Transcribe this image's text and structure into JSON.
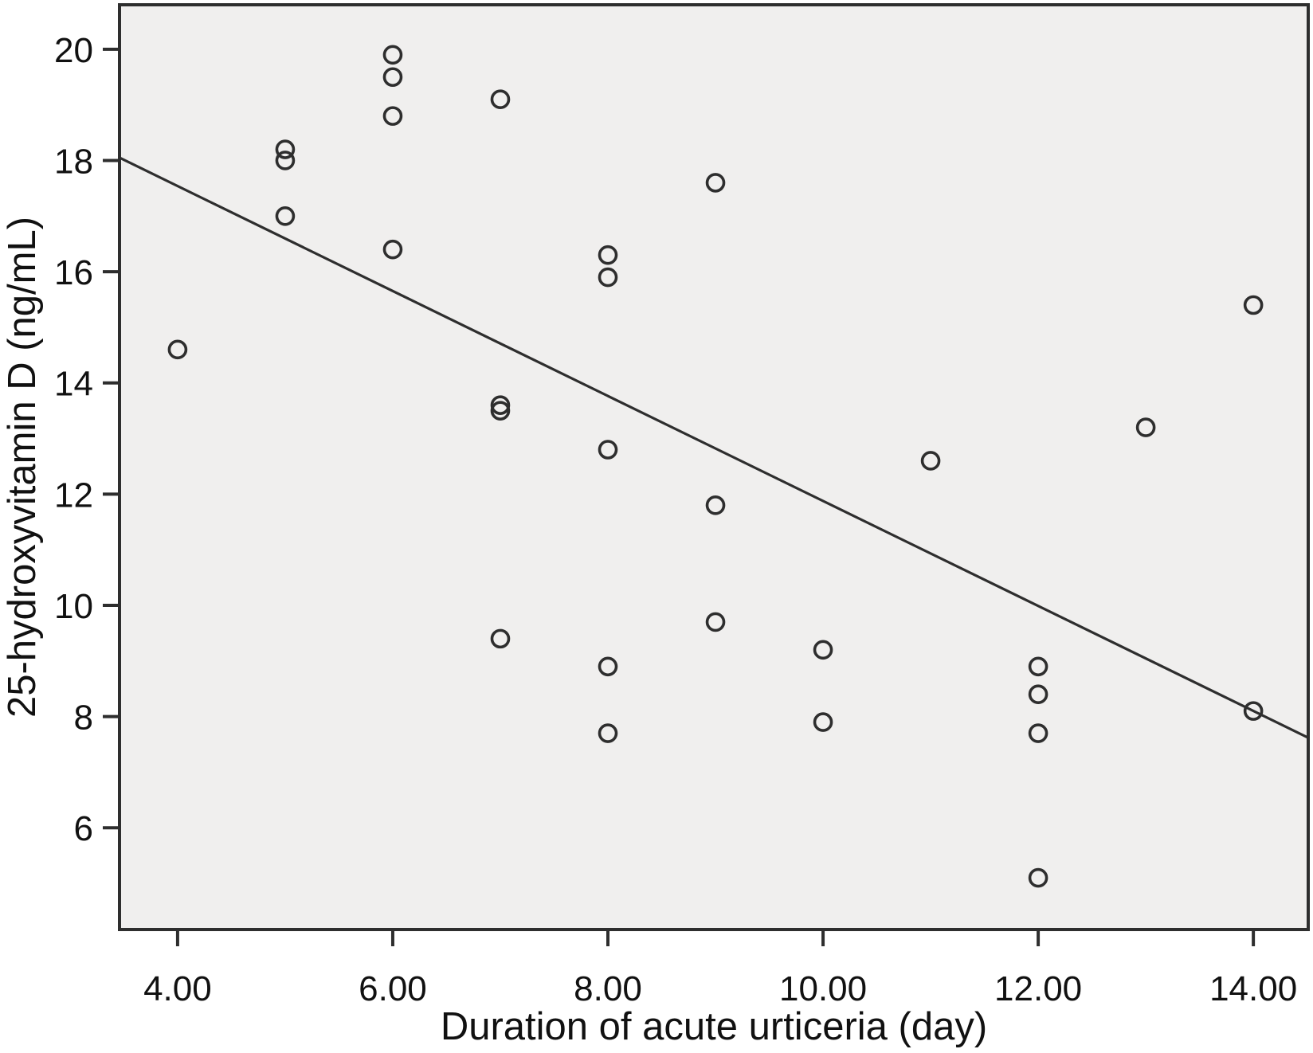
{
  "chart_data": {
    "type": "scatter",
    "title": "",
    "xlabel": "Duration of acute urticeria (day)",
    "ylabel": "25-hydroxyvitamin D (ng/mL)",
    "x_domain": [
      3.46,
      14.51
    ],
    "y_domain": [
      4.17,
      20.8
    ],
    "grid": false,
    "legend": null,
    "x_ticks": [
      {
        "value": 4,
        "label": "4.00"
      },
      {
        "value": 6,
        "label": "6.00"
      },
      {
        "value": 8,
        "label": "8.00"
      },
      {
        "value": 10,
        "label": "10.00"
      },
      {
        "value": 12,
        "label": "12.00"
      },
      {
        "value": 14,
        "label": "14.00"
      }
    ],
    "y_ticks": [
      {
        "value": 6,
        "label": "6"
      },
      {
        "value": 8,
        "label": "8"
      },
      {
        "value": 10,
        "label": "10"
      },
      {
        "value": 12,
        "label": "12"
      },
      {
        "value": 14,
        "label": "14"
      },
      {
        "value": 16,
        "label": "16"
      },
      {
        "value": 18,
        "label": "18"
      },
      {
        "value": 20,
        "label": "20"
      }
    ],
    "points": [
      {
        "x": 4,
        "y": 14.6
      },
      {
        "x": 5,
        "y": 18.2
      },
      {
        "x": 5,
        "y": 18.0
      },
      {
        "x": 5,
        "y": 17.0
      },
      {
        "x": 6,
        "y": 19.9
      },
      {
        "x": 6,
        "y": 19.5
      },
      {
        "x": 6,
        "y": 18.8
      },
      {
        "x": 6,
        "y": 16.4
      },
      {
        "x": 7,
        "y": 19.1
      },
      {
        "x": 7,
        "y": 13.6
      },
      {
        "x": 7,
        "y": 13.5
      },
      {
        "x": 7,
        "y": 9.4
      },
      {
        "x": 8,
        "y": 16.3
      },
      {
        "x": 8,
        "y": 15.9
      },
      {
        "x": 8,
        "y": 12.8
      },
      {
        "x": 8,
        "y": 8.9
      },
      {
        "x": 8,
        "y": 7.7
      },
      {
        "x": 9,
        "y": 17.6
      },
      {
        "x": 9,
        "y": 11.8
      },
      {
        "x": 9,
        "y": 9.7
      },
      {
        "x": 10,
        "y": 9.2
      },
      {
        "x": 10,
        "y": 7.9
      },
      {
        "x": 11,
        "y": 12.6
      },
      {
        "x": 12,
        "y": 8.9
      },
      {
        "x": 12,
        "y": 8.4
      },
      {
        "x": 12,
        "y": 7.7
      },
      {
        "x": 12,
        "y": 5.1
      },
      {
        "x": 13,
        "y": 13.2
      },
      {
        "x": 14,
        "y": 15.4
      },
      {
        "x": 14,
        "y": 8.1
      }
    ],
    "fit_line": {
      "x1": 3.46,
      "y1": 18.05,
      "x2": 14.51,
      "y2": 7.62
    },
    "colors": {
      "plot_bg": "#f0efee",
      "stroke": "#2e2e2e",
      "text": "#111111",
      "page_bg": "#ffffff"
    }
  }
}
